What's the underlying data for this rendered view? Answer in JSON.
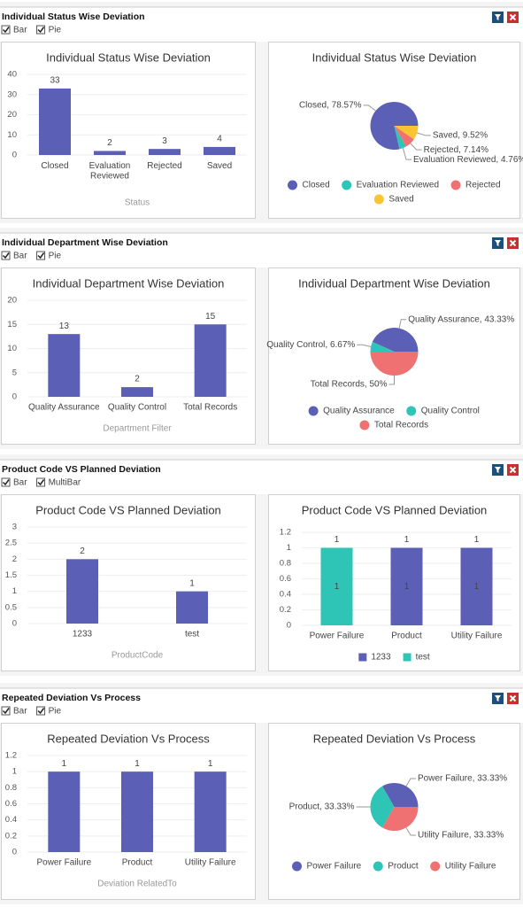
{
  "sections": [
    {
      "title": "Individual Status Wise Deviation",
      "options": [
        "Bar",
        "Pie"
      ]
    },
    {
      "title": "Individual Department Wise Deviation",
      "options": [
        "Bar",
        "Pie"
      ]
    },
    {
      "title": "Product Code VS Planned Deviation",
      "options": [
        "Bar",
        "MultiBar"
      ]
    },
    {
      "title": "Repeated Deviation Vs Process",
      "options": [
        "Bar",
        "Pie"
      ]
    }
  ],
  "chart_data": [
    {
      "type": "bar",
      "title": "Individual Status Wise Deviation",
      "categories": [
        "Closed",
        "Evaluation Reviewed",
        "Rejected",
        "Saved"
      ],
      "values": [
        33,
        2,
        3,
        4
      ],
      "color": "#5b5fb5",
      "ylim": [
        0,
        40
      ],
      "yticks": [
        0,
        10,
        20,
        30,
        40
      ],
      "xlabel": "Status"
    },
    {
      "type": "pie",
      "title": "Individual Status Wise Deviation",
      "categories": [
        "Closed",
        "Evaluation Reviewed",
        "Rejected",
        "Saved"
      ],
      "values": [
        78.57,
        4.76,
        7.14,
        9.52
      ],
      "value_labels": [
        "Closed, 78.57%",
        "Evaluation Reviewed, 4.76%",
        "Rejected, 7.14%",
        "Saved, 9.52%"
      ],
      "colors": [
        "#5b5fb5",
        "#2ec4b6",
        "#f07171",
        "#fbc531"
      ]
    },
    {
      "type": "bar",
      "title": "Individual Department Wise Deviation",
      "categories": [
        "Quality Assurance",
        "Quality Control",
        "Total Records"
      ],
      "values": [
        13,
        2,
        15
      ],
      "color": "#5b5fb5",
      "ylim": [
        0,
        20
      ],
      "yticks": [
        0,
        5,
        10,
        15,
        20
      ],
      "xlabel": "Department Filter"
    },
    {
      "type": "pie",
      "title": "Individual Department Wise Deviation",
      "categories": [
        "Quality Assurance",
        "Quality Control",
        "Total Records"
      ],
      "values": [
        43.33,
        6.67,
        50
      ],
      "value_labels": [
        "Quality Assurance, 43.33%",
        "Quality Control, 6.67%",
        "Total Records, 50%"
      ],
      "colors": [
        "#5b5fb5",
        "#2ec4b6",
        "#f07171"
      ]
    },
    {
      "type": "bar",
      "title": "Product Code VS Planned Deviation",
      "categories": [
        "1233",
        "test"
      ],
      "values": [
        2,
        1
      ],
      "color": "#5b5fb5",
      "ylim": [
        0,
        3
      ],
      "yticks": [
        0,
        0.5,
        1,
        1.5,
        2,
        2.5,
        3
      ],
      "xlabel": "ProductCode"
    },
    {
      "type": "stacked_bar",
      "title": "Product Code VS Planned Deviation",
      "categories": [
        "Power Failure",
        "Product",
        "Utility Failure"
      ],
      "series": [
        {
          "name": "1233",
          "color": "#5b5fb5",
          "values": [
            null,
            1,
            1
          ]
        },
        {
          "name": "test",
          "color": "#2ec4b6",
          "values": [
            1,
            null,
            null
          ]
        }
      ],
      "ylim": [
        0,
        1.2
      ],
      "yticks": [
        0,
        0.2,
        0.4,
        0.6,
        0.8,
        1,
        1.2
      ]
    },
    {
      "type": "bar",
      "title": "Repeated Deviation Vs Process",
      "categories": [
        "Power Failure",
        "Product",
        "Utility Failure"
      ],
      "values": [
        1,
        1,
        1
      ],
      "color": "#5b5fb5",
      "ylim": [
        0,
        1.2
      ],
      "yticks": [
        0,
        0.2,
        0.4,
        0.6,
        0.8,
        1,
        1.2
      ],
      "xlabel": "Deviation RelatedTo"
    },
    {
      "type": "pie",
      "title": "Repeated Deviation Vs Process",
      "categories": [
        "Power Failure",
        "Product",
        "Utility Failure"
      ],
      "values": [
        33.33,
        33.33,
        33.33
      ],
      "value_labels": [
        "Power Failure, 33.33%",
        "Product, 33.33%",
        "Utility Failure, 33.33%"
      ],
      "colors": [
        "#5b5fb5",
        "#2ec4b6",
        "#f07171"
      ]
    }
  ]
}
